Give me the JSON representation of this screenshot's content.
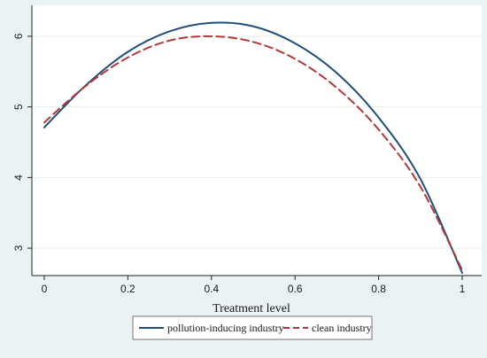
{
  "chart_data": {
    "type": "line",
    "title": "",
    "xlabel": "Treatment level",
    "ylabel": "",
    "xlim": [
      0,
      1
    ],
    "ylim": [
      2.75,
      6.2
    ],
    "x_ticks": [
      0,
      0.2,
      0.4,
      0.6,
      0.8,
      1
    ],
    "x_tick_labels": [
      "0",
      "0.2",
      "0.4",
      "0.6",
      "0.8",
      "1"
    ],
    "y_ticks": [
      3,
      4,
      5,
      6
    ],
    "y_tick_labels": [
      "3",
      "4",
      "5",
      "6"
    ],
    "grid": "horizontal",
    "legend_position": "bottom",
    "x": [
      0,
      0.1,
      0.2,
      0.3,
      0.4,
      0.5,
      0.6,
      0.7,
      0.8,
      0.9,
      1.0
    ],
    "series": [
      {
        "name": "pollution-inducing industry",
        "color": "#1f4e79",
        "line_style": "solid",
        "values": [
          4.71,
          5.31,
          5.78,
          6.07,
          6.19,
          6.14,
          5.9,
          5.48,
          4.85,
          3.98,
          2.65
        ]
      },
      {
        "name": "clean industry",
        "color": "#b03a3a",
        "line_style": "dashed",
        "values": [
          4.78,
          5.3,
          5.7,
          5.94,
          6.0,
          5.92,
          5.68,
          5.27,
          4.68,
          3.87,
          2.69
        ]
      }
    ]
  },
  "colors": {
    "plot_background": "#ffffff",
    "outer_background": "#eaf2f3",
    "gridline": "#e8eeee",
    "axis": "#222222"
  }
}
